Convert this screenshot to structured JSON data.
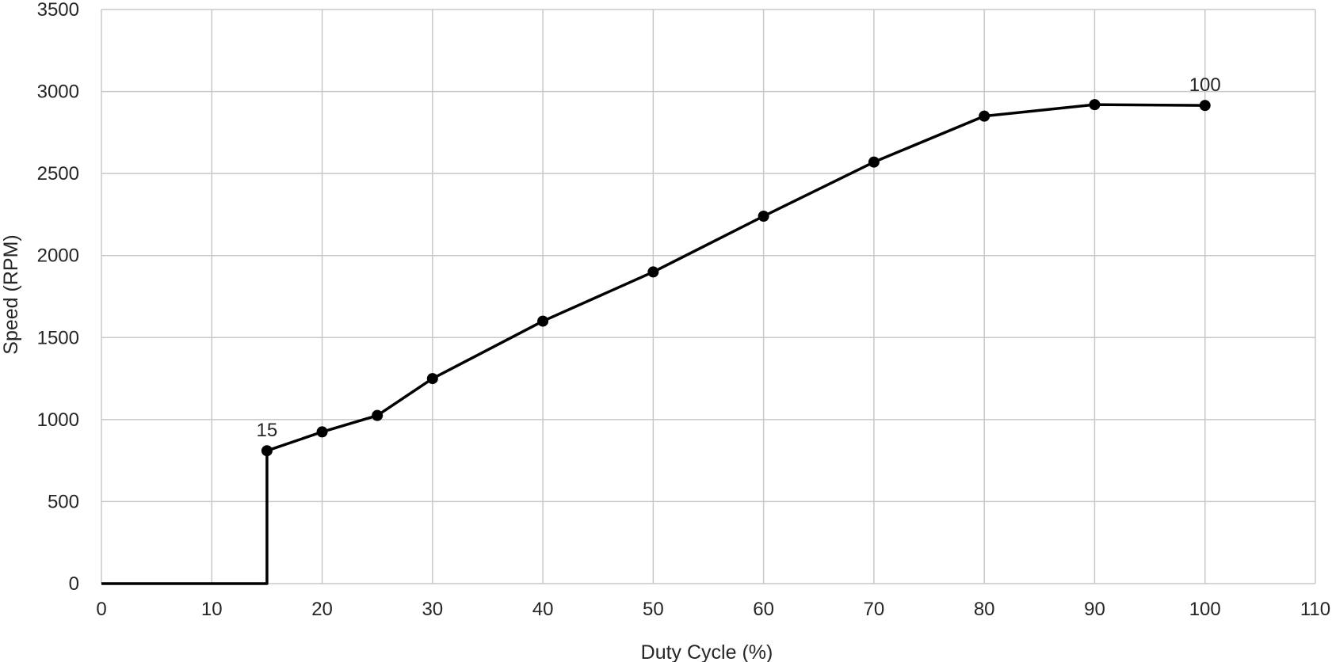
{
  "chart_data": {
    "type": "line",
    "title": "",
    "xlabel": "Duty Cycle (%)",
    "ylabel": "Speed (RPM)",
    "xlim": [
      0,
      110
    ],
    "ylim": [
      0,
      3500
    ],
    "xticks": [
      0,
      10,
      20,
      30,
      40,
      50,
      60,
      70,
      80,
      90,
      100,
      110
    ],
    "yticks": [
      0,
      500,
      1000,
      1500,
      2000,
      2500,
      3000,
      3500
    ],
    "grid": true,
    "legend": "none",
    "line_color": "#000000",
    "grid_color": "#c8c8c8",
    "series": [
      {
        "x": [
          0,
          15,
          15,
          20,
          25,
          30,
          40,
          50,
          60,
          70,
          80,
          90,
          100
        ],
        "y": [
          0,
          0,
          810,
          925,
          1025,
          1250,
          1600,
          1900,
          2240,
          2570,
          2850,
          2920,
          2915
        ],
        "markers": [
          false,
          false,
          true,
          true,
          true,
          true,
          true,
          true,
          true,
          true,
          true,
          true,
          true
        ]
      }
    ],
    "annotations": [
      {
        "text": "15",
        "x": 15,
        "y": 810
      },
      {
        "text": "100",
        "x": 100,
        "y": 2915
      }
    ]
  }
}
